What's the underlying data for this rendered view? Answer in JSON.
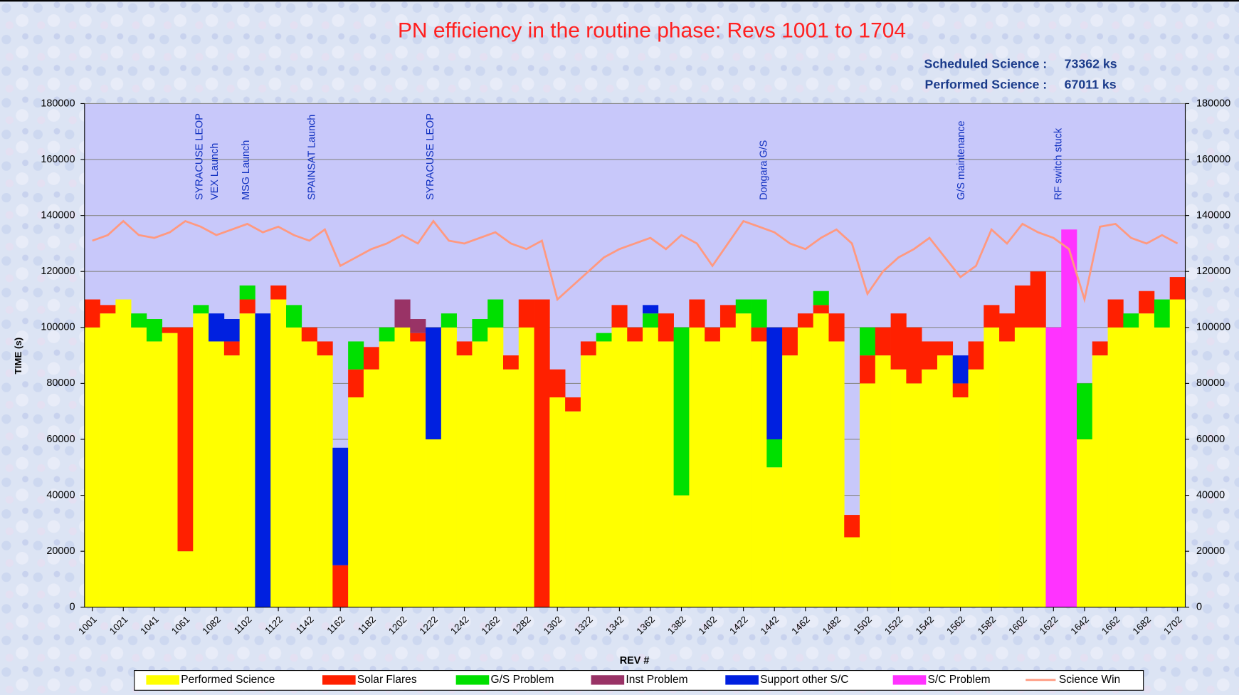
{
  "chart_data": {
    "type": "bar",
    "stacked": true,
    "title": "PN efficiency in the routine phase: Revs  1001  to  1704",
    "summary": [
      {
        "label": "Scheduled Science :",
        "value": "73362 ks"
      },
      {
        "label": "Performed Science :",
        "value": "67011 ks"
      }
    ],
    "xlabel": "REV #",
    "ylabel": "TIME (s)",
    "annotations": [
      "SYRACUSE LEOP",
      "VEX Launch",
      "MSG Launch",
      "SPAINSAT Launch",
      "SYRACUSE LEOP",
      "Dongara G/S",
      "G/S maintenance",
      "RF switch stuck"
    ],
    "categories": [
      "1001",
      null,
      "1021",
      null,
      "1041",
      null,
      "1061",
      null,
      "1082",
      null,
      "1102",
      null,
      "1122",
      null,
      "1142",
      null,
      "1162",
      null,
      "1182",
      null,
      "1202",
      null,
      "1222",
      null,
      "1242",
      null,
      "1262",
      null,
      "1282",
      null,
      "1302",
      null,
      "1322",
      null,
      "1342",
      null,
      "1362",
      null,
      "1382",
      null,
      "1402",
      null,
      "1422",
      null,
      "1442",
      null,
      "1462",
      null,
      "1482",
      null,
      "1502",
      null,
      "1522",
      null,
      "1542",
      null,
      "1562",
      null,
      "1582",
      null,
      "1602",
      null,
      "1622",
      null,
      "1642",
      null,
      "1662",
      null,
      "1682",
      null,
      "1702"
    ],
    "series": [
      {
        "name": "Performed Science",
        "color": "#ffff00",
        "values": [
          100000,
          105000,
          110000,
          100000,
          95000,
          98000,
          20000,
          105000,
          95000,
          90000,
          105000,
          0,
          110000,
          100000,
          95000,
          90000,
          0,
          75000,
          85000,
          95000,
          100000,
          95000,
          60000,
          100000,
          90000,
          95000,
          100000,
          85000,
          100000,
          0,
          75000,
          70000,
          90000,
          95000,
          100000,
          95000,
          100000,
          95000,
          40000,
          100000,
          95000,
          100000,
          105000,
          95000,
          50000,
          90000,
          100000,
          105000,
          95000,
          25000,
          80000,
          90000,
          85000,
          80000,
          85000,
          90000,
          75000,
          85000,
          100000,
          95000,
          100000,
          100000,
          0,
          0,
          60000,
          90000,
          100000,
          100000,
          105000,
          100000,
          110000
        ]
      },
      {
        "name": "Solar Flares",
        "color": "#ff2000",
        "values": [
          10000,
          3000,
          0,
          0,
          0,
          2000,
          80000,
          0,
          0,
          5000,
          5000,
          0,
          5000,
          0,
          5000,
          5000,
          15000,
          10000,
          8000,
          0,
          0,
          3000,
          0,
          0,
          5000,
          0,
          0,
          5000,
          10000,
          110000,
          10000,
          5000,
          5000,
          0,
          8000,
          5000,
          0,
          10000,
          0,
          10000,
          5000,
          8000,
          0,
          5000,
          0,
          10000,
          5000,
          3000,
          10000,
          8000,
          10000,
          10000,
          20000,
          20000,
          10000,
          5000,
          5000,
          10000,
          8000,
          10000,
          15000,
          20000,
          0,
          0,
          0,
          5000,
          10000,
          0,
          8000,
          0,
          8000
        ]
      },
      {
        "name": "G/S Problem",
        "color": "#00e000",
        "values": [
          0,
          0,
          0,
          5000,
          8000,
          0,
          0,
          3000,
          0,
          0,
          5000,
          0,
          0,
          8000,
          0,
          0,
          0,
          10000,
          0,
          5000,
          0,
          0,
          0,
          5000,
          0,
          8000,
          10000,
          0,
          0,
          0,
          0,
          0,
          0,
          3000,
          0,
          0,
          5000,
          0,
          60000,
          0,
          0,
          0,
          5000,
          10000,
          10000,
          0,
          0,
          5000,
          0,
          0,
          10000,
          0,
          0,
          0,
          0,
          0,
          0,
          0,
          0,
          0,
          0,
          0,
          0,
          0,
          20000,
          0,
          0,
          5000,
          0,
          10000,
          0
        ]
      },
      {
        "name": "Inst Problem",
        "color": "#993366",
        "values": [
          0,
          0,
          0,
          0,
          0,
          0,
          0,
          0,
          0,
          0,
          0,
          0,
          0,
          0,
          0,
          0,
          0,
          0,
          0,
          0,
          10000,
          5000,
          0,
          0,
          0,
          0,
          0,
          0,
          0,
          0,
          0,
          0,
          0,
          0,
          0,
          0,
          0,
          0,
          0,
          0,
          0,
          0,
          0,
          0,
          0,
          0,
          0,
          0,
          0,
          0,
          0,
          0,
          0,
          0,
          0,
          0,
          0,
          0,
          0,
          0,
          0,
          0,
          0,
          0,
          0,
          0,
          0,
          0,
          0,
          0,
          0
        ]
      },
      {
        "name": "Support other S/C",
        "color": "#0020e0",
        "values": [
          0,
          0,
          0,
          0,
          0,
          0,
          0,
          0,
          10000,
          8000,
          0,
          105000,
          0,
          0,
          0,
          0,
          42000,
          0,
          0,
          0,
          0,
          0,
          40000,
          0,
          0,
          0,
          0,
          0,
          0,
          0,
          0,
          0,
          0,
          0,
          0,
          0,
          3000,
          0,
          0,
          0,
          0,
          0,
          0,
          0,
          40000,
          0,
          0,
          0,
          0,
          0,
          0,
          0,
          0,
          0,
          0,
          0,
          10000,
          0,
          0,
          0,
          0,
          0,
          0,
          0,
          0,
          0,
          0,
          0,
          0,
          0,
          0
        ]
      },
      {
        "name": "S/C Problem",
        "color": "#ff33ff",
        "values": [
          0,
          0,
          0,
          0,
          0,
          0,
          0,
          0,
          0,
          0,
          0,
          0,
          0,
          0,
          0,
          0,
          0,
          0,
          0,
          0,
          0,
          0,
          0,
          0,
          0,
          0,
          0,
          0,
          0,
          0,
          0,
          0,
          0,
          0,
          0,
          0,
          0,
          0,
          0,
          0,
          0,
          0,
          0,
          0,
          0,
          0,
          0,
          0,
          0,
          0,
          0,
          0,
          0,
          0,
          0,
          0,
          0,
          0,
          0,
          0,
          0,
          0,
          100000,
          135000,
          0,
          0,
          0,
          0,
          0,
          0,
          0
        ]
      },
      {
        "name": "Science Win",
        "type": "line",
        "color": "#ff9980",
        "values": [
          131000,
          133000,
          138000,
          133000,
          132000,
          134000,
          138000,
          136000,
          133000,
          135000,
          137000,
          134000,
          136000,
          133000,
          131000,
          135000,
          122000,
          125000,
          128000,
          130000,
          133000,
          130000,
          138000,
          131000,
          130000,
          132000,
          134000,
          130000,
          128000,
          131000,
          110000,
          115000,
          120000,
          125000,
          128000,
          130000,
          132000,
          128000,
          133000,
          130000,
          122000,
          130000,
          138000,
          136000,
          134000,
          130000,
          128000,
          132000,
          135000,
          130000,
          112000,
          120000,
          125000,
          128000,
          132000,
          125000,
          118000,
          122000,
          135000,
          130000,
          137000,
          134000,
          132000,
          128000,
          110000,
          136000,
          137000,
          132000,
          130000,
          133000,
          130000
        ]
      }
    ],
    "ylim": [
      0,
      180000
    ],
    "yticks": [
      0,
      20000,
      40000,
      60000,
      80000,
      100000,
      120000,
      140000,
      160000,
      180000
    ],
    "y2lim": [
      0,
      180000
    ],
    "y2ticks": [
      0,
      20000,
      40000,
      60000,
      80000,
      100000,
      120000,
      140000,
      160000,
      180000
    ],
    "grid": true,
    "legend": "bottom"
  }
}
